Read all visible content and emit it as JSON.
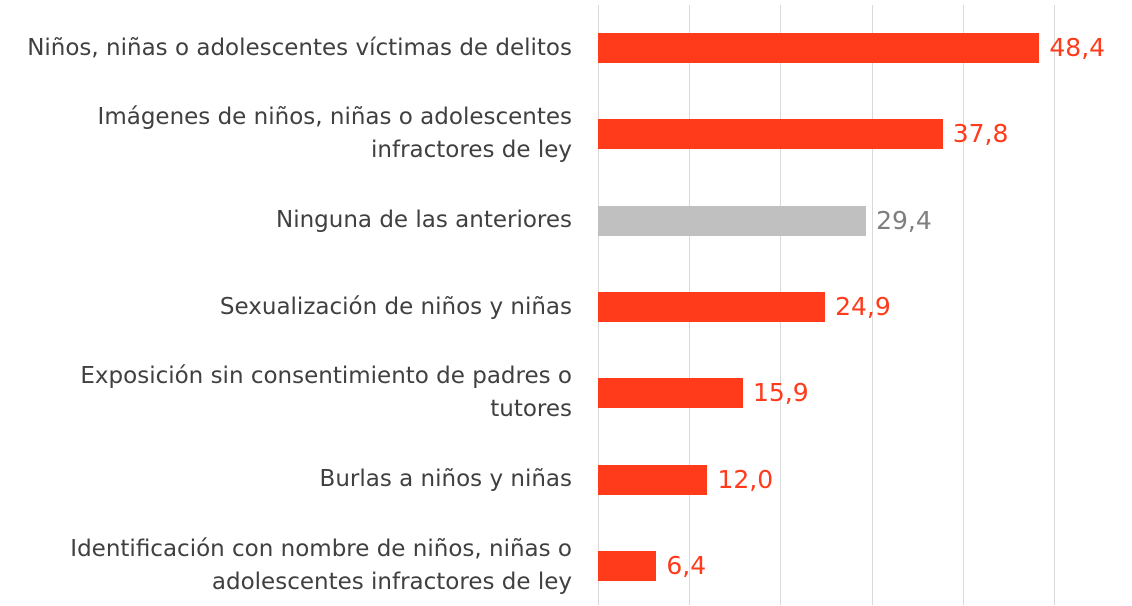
{
  "chart_data": {
    "type": "bar",
    "orientation": "horizontal",
    "categories": [
      "Niños, niñas o adolescentes víctimas de delitos",
      "Imágenes de niños, niñas o adolescentes infractores de ley",
      "Ninguna de las anteriores",
      "Sexualización de niños y niñas",
      "Exposición sin consentimiento de padres o tutores",
      "Burlas a niños y niñas",
      "Identificación con nombre de niños, niñas o adolescentes infractores de ley"
    ],
    "values": [
      48.4,
      37.8,
      29.4,
      24.9,
      15.9,
      12.0,
      6.4
    ],
    "value_labels": [
      "48,4",
      "37,8",
      "29,4",
      "24,9",
      "15,9",
      "12,0",
      "6,4"
    ],
    "colors": [
      "#ff3b1c",
      "#ff3b1c",
      "#c0c0c0",
      "#ff3b1c",
      "#ff3b1c",
      "#ff3b1c",
      "#ff3b1c"
    ],
    "label_colors": [
      "#ff3b1c",
      "#ff3b1c",
      "#7f7f7f",
      "#ff3b1c",
      "#ff3b1c",
      "#ff3b1c",
      "#ff3b1c"
    ],
    "xlim": [
      0,
      50
    ],
    "xticks": [
      0,
      10,
      20,
      30,
      40,
      50
    ],
    "grid": true
  }
}
